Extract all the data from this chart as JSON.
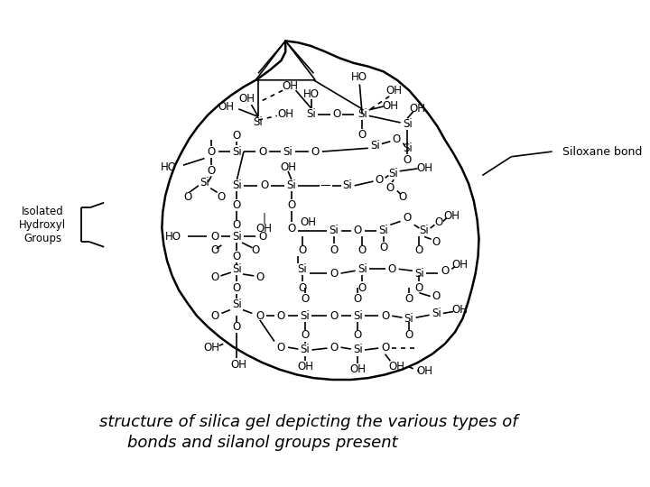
{
  "title_line1": "structure of silica gel depicting the various types of",
  "title_line2": "bonds and silanol groups present",
  "title_fontsize": 13,
  "title_fontstyle": "italic",
  "label_isolated": "Isolated\nHydroxyl\nGroups",
  "label_siloxane": "Siloxane bond",
  "bg_color": "#ffffff",
  "text_color": "#000000",
  "fig_width": 7.2,
  "fig_height": 5.4,
  "dpi": 100
}
